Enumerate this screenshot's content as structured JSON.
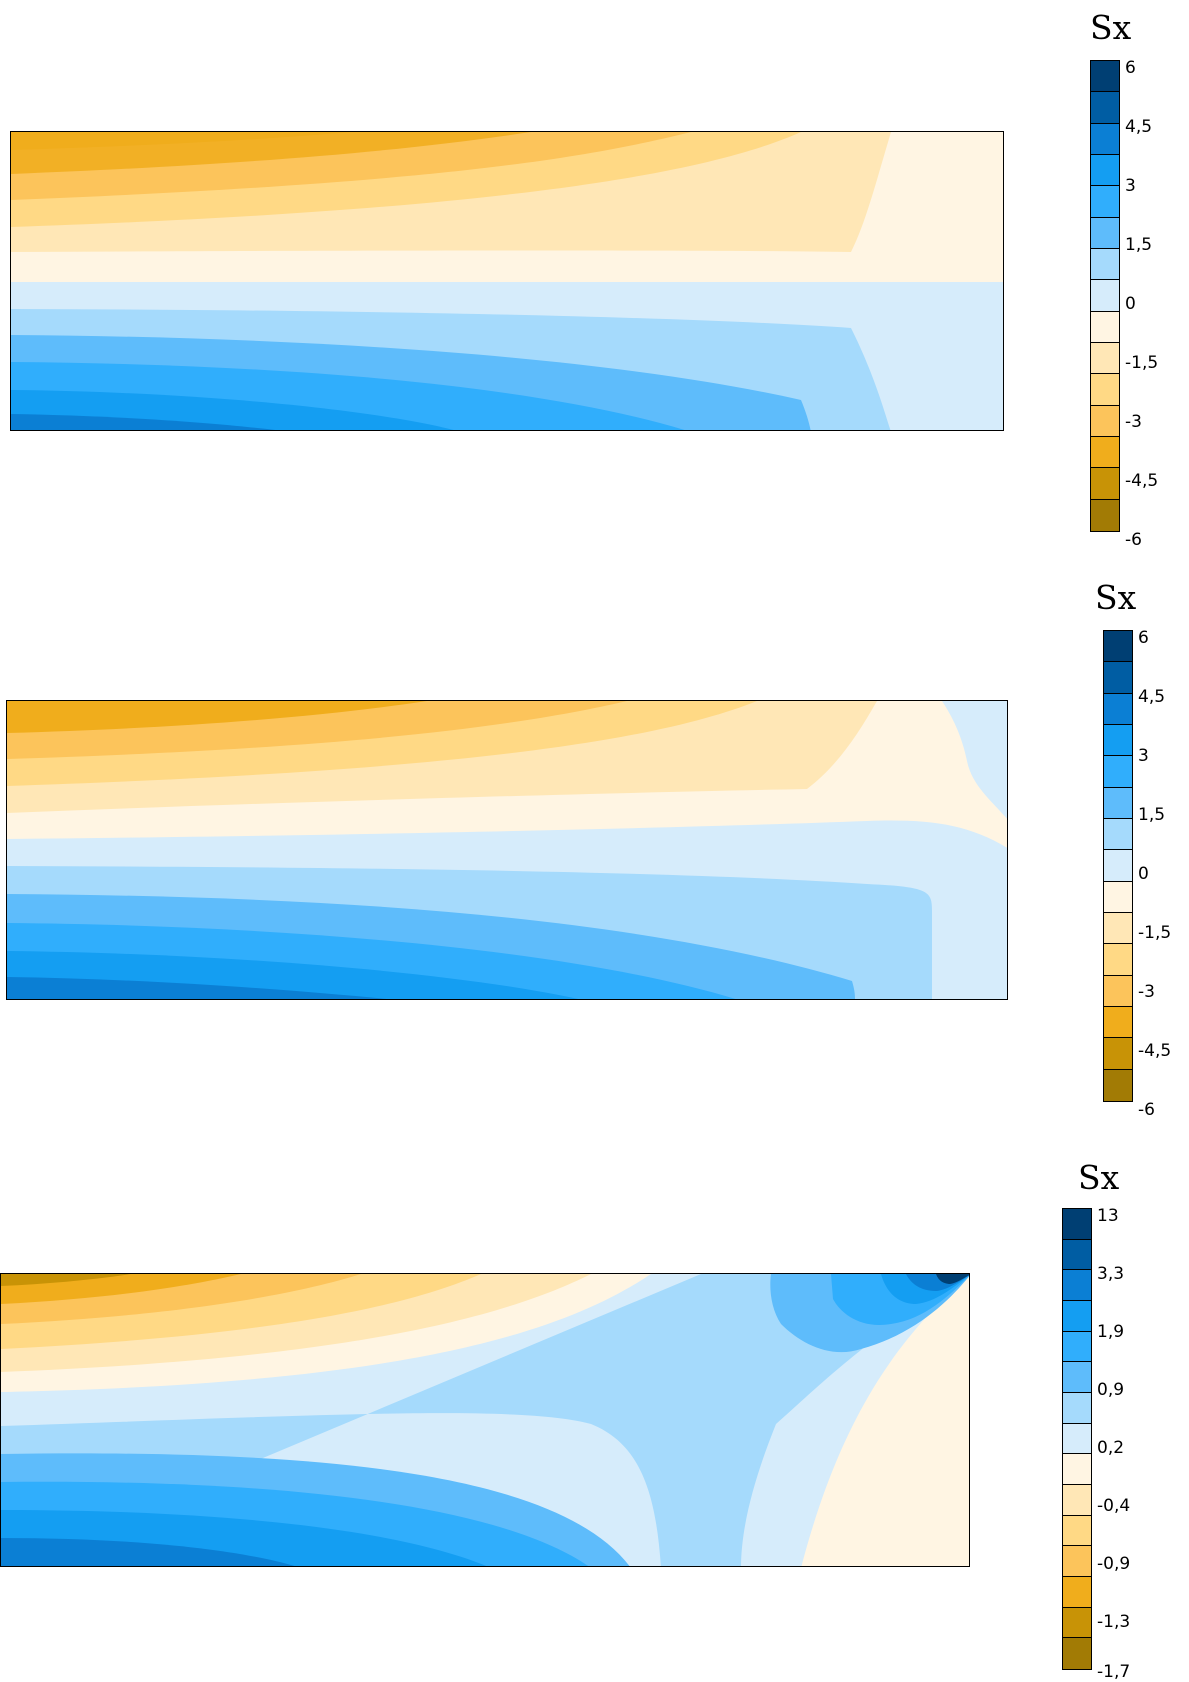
{
  "figures": [
    {
      "id": "plot-1",
      "legend": {
        "title": "Sx",
        "ticks": [
          "6",
          "4,5",
          "3",
          "1,5",
          "0",
          "-1,5",
          "-3",
          "-4,5",
          "-6"
        ],
        "colors": [
          "#003f73",
          "#005da3",
          "#0b7fd4",
          "#149ef2",
          "#30aefc",
          "#5ebcfb",
          "#a5dafc",
          "#d6ecfb",
          "#fff5e3",
          "#ffe7b6",
          "#ffd985",
          "#fcc45b",
          "#f0ad1c",
          "#c89306",
          "#a27b05"
        ]
      }
    },
    {
      "id": "plot-2",
      "legend": {
        "title": "Sx",
        "ticks": [
          "6",
          "4,5",
          "3",
          "1,5",
          "0",
          "-1,5",
          "-3",
          "-4,5",
          "-6"
        ],
        "colors": [
          "#003f73",
          "#005da3",
          "#0b7fd4",
          "#149ef2",
          "#30aefc",
          "#5ebcfb",
          "#a5dafc",
          "#d6ecfb",
          "#fff5e3",
          "#ffe7b6",
          "#ffd985",
          "#fcc45b",
          "#f0ad1c",
          "#c89306",
          "#a27b05"
        ]
      }
    },
    {
      "id": "plot-3",
      "legend": {
        "title": "Sx",
        "ticks": [
          "13",
          "3,3",
          "1,9",
          "0,9",
          "0,2",
          "-0,4",
          "-0,9",
          "-1,3",
          "-1,7"
        ],
        "colors": [
          "#003f73",
          "#005da3",
          "#0b7fd4",
          "#149ef2",
          "#30aefc",
          "#5ebcfb",
          "#a5dafc",
          "#d6ecfb",
          "#fff5e3",
          "#ffe7b6",
          "#ffd985",
          "#fcc45b",
          "#f0ad1c",
          "#c89306",
          "#a27b05"
        ]
      }
    }
  ]
}
